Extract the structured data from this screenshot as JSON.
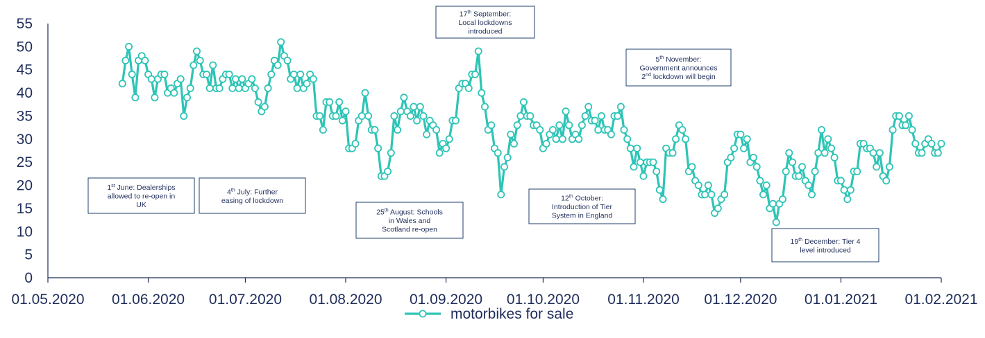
{
  "chart_data": {
    "type": "line",
    "x_ticks": [
      "01.05.2020",
      "01.06.2020",
      "01.07.2020",
      "01.08.2020",
      "01.09.2020",
      "01.10.2020",
      "01.11.2020",
      "01.12.2020",
      "01.01.2021",
      "01.02.2021"
    ],
    "y_ticks": [
      "0",
      "5",
      "10",
      "15",
      "20",
      "25",
      "30",
      "35",
      "40",
      "45",
      "50",
      "55"
    ],
    "ylim": [
      0,
      55
    ],
    "xlim": [
      "2020-05-01",
      "2021-02-01"
    ],
    "grid": false,
    "legend_position": "bottom",
    "series_color": "#2ec4b6",
    "axis_color": "#1f2d5a",
    "series": [
      {
        "name": "motorbikes for sale",
        "start_date": "2020-05-24",
        "values": [
          42,
          47,
          50,
          44,
          39,
          47,
          48,
          47,
          44,
          43,
          39,
          43,
          44,
          44,
          40,
          41,
          40,
          42,
          43,
          35,
          39,
          41,
          46,
          49,
          47,
          44,
          44,
          41,
          46,
          41,
          41,
          43,
          44,
          44,
          41,
          43,
          41,
          43,
          41,
          42,
          43,
          41,
          38,
          36,
          37,
          41,
          44,
          47,
          46,
          51,
          48,
          47,
          43,
          44,
          41,
          44,
          41,
          42,
          44,
          43,
          35,
          35,
          32,
          38,
          38,
          35,
          35,
          38,
          34,
          36,
          28,
          28,
          29,
          34,
          35,
          40,
          35,
          32,
          32,
          28,
          22,
          22,
          23,
          27,
          35,
          32,
          36,
          39,
          36,
          35,
          37,
          34,
          37,
          35,
          31,
          34,
          33,
          32,
          27,
          29,
          28,
          30,
          34,
          34,
          41,
          42,
          42,
          41,
          44,
          44,
          49,
          40,
          37,
          32,
          33,
          28,
          27,
          18,
          24,
          26,
          31,
          29,
          33,
          35,
          38,
          35,
          35,
          33,
          33,
          32,
          28,
          29,
          31,
          32,
          30,
          33,
          30,
          36,
          33,
          30,
          31,
          30,
          33,
          35,
          37,
          34,
          34,
          32,
          35,
          32,
          32,
          31,
          35,
          35,
          37,
          32,
          30,
          28,
          24,
          28,
          25,
          22,
          25,
          25,
          25,
          23,
          19,
          17,
          28,
          27,
          27,
          30,
          33,
          32,
          30,
          23,
          24,
          21,
          20,
          18,
          18,
          20,
          18,
          14,
          15,
          17,
          18,
          25,
          26,
          28,
          31,
          31,
          28,
          30,
          25,
          26,
          24,
          21,
          18,
          20,
          15,
          16,
          12,
          16,
          17,
          23,
          27,
          25,
          22,
          22,
          24,
          21,
          20,
          18,
          23,
          27,
          32,
          27,
          30,
          28,
          26,
          21,
          21,
          19,
          17,
          19,
          23,
          23,
          29,
          29,
          28,
          28,
          27,
          24,
          27,
          22,
          21,
          24,
          32,
          35,
          35,
          33,
          33,
          35,
          32,
          29,
          27,
          27,
          29,
          30,
          29,
          27,
          27,
          29
        ]
      }
    ],
    "annotations": [
      {
        "lines": [
          "1st June: Dealerships",
          "allowed to re-open in",
          "UK"
        ]
      },
      {
        "lines": [
          "4th July: Further",
          "easing of lockdown"
        ]
      },
      {
        "lines": [
          "25th August: Schools",
          "in Wales and",
          "Scotland re-open"
        ]
      },
      {
        "lines": [
          "17th September:",
          "Local lockdowns",
          "introduced"
        ]
      },
      {
        "lines": [
          "12th October:",
          "Introduction of Tier",
          "System in England"
        ]
      },
      {
        "lines": [
          "5th November:",
          "Government announces",
          "2nd  lockdown will begin"
        ]
      },
      {
        "lines": [
          "19th December: Tier 4",
          "level introduced"
        ]
      }
    ]
  }
}
